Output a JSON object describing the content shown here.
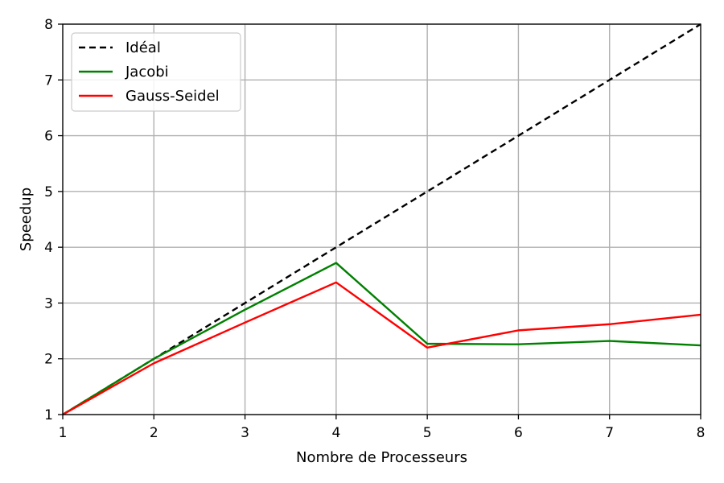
{
  "chart_data": {
    "type": "line",
    "title": "",
    "xlabel": "Nombre de Processeurs",
    "ylabel": "Speedup",
    "xlim": [
      1,
      8
    ],
    "ylim": [
      1,
      8
    ],
    "xticks": [
      "1",
      "2",
      "3",
      "4",
      "5",
      "6",
      "7",
      "8"
    ],
    "yticks": [
      "1",
      "2",
      "3",
      "4",
      "5",
      "6",
      "7",
      "8"
    ],
    "grid": true,
    "legend_position": "top-left",
    "x": [
      1,
      2,
      3,
      4,
      5,
      6,
      7,
      8
    ],
    "series": [
      {
        "name": "Idéal",
        "values": [
          1,
          2,
          3,
          4,
          5,
          6,
          7,
          8
        ],
        "color": "#000000",
        "style": "dashed"
      },
      {
        "name": "Jacobi",
        "values": [
          1.0,
          2.0,
          2.88,
          3.72,
          2.27,
          2.26,
          2.32,
          2.24
        ],
        "color": "#008000",
        "style": "solid"
      },
      {
        "name": "Gauss-Seidel",
        "values": [
          1.0,
          1.92,
          2.65,
          3.37,
          2.2,
          2.51,
          2.62,
          2.79
        ],
        "color": "#ff0000",
        "style": "solid"
      }
    ]
  }
}
